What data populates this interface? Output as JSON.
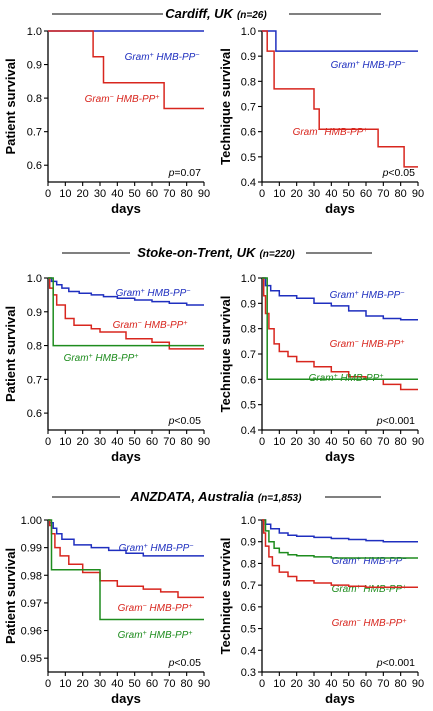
{
  "sections": [
    {
      "title": "Cardiff, UK",
      "n": "(n=26)"
    },
    {
      "title": "Stoke-on-Trent, UK",
      "n": "(n=220)"
    },
    {
      "title": "ANZDATA, Australia",
      "n": "(n=1,853)"
    }
  ],
  "colors": {
    "blue": "#1f2fbf",
    "red": "#d8261e",
    "green": "#1e8c1e"
  },
  "chart_data": [
    {
      "type": "line",
      "step": true,
      "title": "",
      "xlabel": "days",
      "ylabel": "Patient survival",
      "xlim": [
        0,
        90
      ],
      "ylim": [
        0.55,
        1.0
      ],
      "xticks": [
        "0",
        "10",
        "20",
        "30",
        "40",
        "50",
        "60",
        "70",
        "80",
        "90"
      ],
      "yticks": [
        "0.6",
        "0.7",
        "0.8",
        "0.9",
        "1.0"
      ],
      "ytick_values": [
        0.6,
        0.7,
        0.8,
        0.9,
        1.0
      ],
      "pvalue": "=0.07",
      "series": [
        {
          "name": "Gram+ HMB-PP−",
          "color": "blue",
          "x": [
            0,
            90
          ],
          "y": [
            1.0,
            1.0
          ]
        },
        {
          "name": "Gram− HMB-PP+",
          "color": "red",
          "x": [
            0,
            26,
            32,
            67,
            90
          ],
          "y": [
            1.0,
            0.923,
            0.846,
            0.769,
            0.769
          ]
        }
      ]
    },
    {
      "type": "line",
      "step": true,
      "title": "",
      "xlabel": "days",
      "ylabel": "Technique survival",
      "xlim": [
        0,
        90
      ],
      "ylim": [
        0.4,
        1.0
      ],
      "xticks": [
        "0",
        "10",
        "20",
        "30",
        "40",
        "50",
        "60",
        "70",
        "80",
        "90"
      ],
      "yticks": [
        "0.4",
        "0.5",
        "0.6",
        "0.7",
        "0.8",
        "0.9",
        "1.0"
      ],
      "ytick_values": [
        0.4,
        0.5,
        0.6,
        0.7,
        0.8,
        0.9,
        1.0
      ],
      "pvalue": "<0.05",
      "series": [
        {
          "name": "Gram+ HMB-PP−",
          "color": "blue",
          "x": [
            0,
            8,
            90
          ],
          "y": [
            1.0,
            0.92,
            0.92
          ]
        },
        {
          "name": "Gram− HMB-PP+",
          "color": "red",
          "x": [
            0,
            3,
            7,
            30,
            33,
            67,
            82,
            90
          ],
          "y": [
            1.0,
            0.92,
            0.77,
            0.69,
            0.61,
            0.54,
            0.46,
            0.46
          ]
        }
      ]
    },
    {
      "type": "line",
      "step": true,
      "title": "",
      "xlabel": "days",
      "ylabel": "Patient survival",
      "xlim": [
        0,
        90
      ],
      "ylim": [
        0.55,
        1.0
      ],
      "xticks": [
        "0",
        "10",
        "20",
        "30",
        "40",
        "50",
        "60",
        "70",
        "80",
        "90"
      ],
      "yticks": [
        "0.6",
        "0.7",
        "0.8",
        "0.9",
        "1.0"
      ],
      "ytick_values": [
        0.6,
        0.7,
        0.8,
        0.9,
        1.0
      ],
      "pvalue": "<0.05",
      "series": [
        {
          "name": "Gram+ HMB-PP−",
          "color": "blue",
          "x": [
            0,
            2,
            5,
            8,
            12,
            18,
            25,
            32,
            40,
            50,
            60,
            70,
            80,
            90
          ],
          "y": [
            1.0,
            0.99,
            0.98,
            0.97,
            0.96,
            0.955,
            0.95,
            0.945,
            0.94,
            0.935,
            0.93,
            0.925,
            0.92,
            0.92
          ]
        },
        {
          "name": "Gram− HMB-PP+",
          "color": "red",
          "x": [
            0,
            1,
            3,
            5,
            10,
            15,
            25,
            30,
            45,
            60,
            70,
            90
          ],
          "y": [
            1.0,
            0.97,
            0.95,
            0.92,
            0.88,
            0.86,
            0.85,
            0.84,
            0.82,
            0.81,
            0.79,
            0.79
          ]
        },
        {
          "name": "Gram+ HMB-PP+",
          "color": "green",
          "x": [
            0,
            3,
            90
          ],
          "y": [
            1.0,
            0.8,
            0.8
          ]
        }
      ]
    },
    {
      "type": "line",
      "step": true,
      "title": "",
      "xlabel": "days",
      "ylabel": "Technique survival",
      "xlim": [
        0,
        90
      ],
      "ylim": [
        0.4,
        1.0
      ],
      "xticks": [
        "0",
        "10",
        "20",
        "30",
        "40",
        "50",
        "60",
        "70",
        "80",
        "90"
      ],
      "yticks": [
        "0.4",
        "0.5",
        "0.6",
        "0.7",
        "0.8",
        "0.9",
        "1.0"
      ],
      "ytick_values": [
        0.4,
        0.5,
        0.6,
        0.7,
        0.8,
        0.9,
        1.0
      ],
      "pvalue": "<0.001",
      "series": [
        {
          "name": "Gram+ HMB-PP−",
          "color": "blue",
          "x": [
            0,
            2,
            5,
            10,
            20,
            30,
            40,
            50,
            60,
            70,
            80,
            90
          ],
          "y": [
            1.0,
            0.97,
            0.95,
            0.93,
            0.92,
            0.9,
            0.89,
            0.87,
            0.85,
            0.84,
            0.835,
            0.835
          ]
        },
        {
          "name": "Gram− HMB-PP+",
          "color": "red",
          "x": [
            0,
            1,
            2,
            4,
            7,
            10,
            15,
            20,
            30,
            40,
            50,
            60,
            70,
            80,
            90
          ],
          "y": [
            1.0,
            0.93,
            0.86,
            0.8,
            0.74,
            0.71,
            0.69,
            0.67,
            0.65,
            0.63,
            0.61,
            0.6,
            0.58,
            0.56,
            0.56
          ]
        },
        {
          "name": "Gram+ HMB-PP+",
          "color": "green",
          "x": [
            0,
            3,
            90
          ],
          "y": [
            1.0,
            0.6,
            0.6
          ]
        }
      ]
    },
    {
      "type": "line",
      "step": true,
      "title": "",
      "xlabel": "days",
      "ylabel": "Patient survival",
      "xlim": [
        0,
        90
      ],
      "ylim": [
        0.945,
        1.0
      ],
      "xticks": [
        "0",
        "10",
        "20",
        "30",
        "40",
        "50",
        "60",
        "70",
        "80",
        "90"
      ],
      "yticks": [
        "0.95",
        "0.96",
        "0.97",
        "0.98",
        "0.99",
        "1.00"
      ],
      "ytick_values": [
        0.95,
        0.96,
        0.97,
        0.98,
        0.99,
        1.0
      ],
      "pvalue": "<0.05",
      "series": [
        {
          "name": "Gram+ HMB-PP−",
          "color": "blue",
          "x": [
            0,
            1,
            3,
            5,
            8,
            15,
            25,
            35,
            45,
            55,
            65,
            90
          ],
          "y": [
            1.0,
            0.999,
            0.997,
            0.995,
            0.993,
            0.991,
            0.99,
            0.989,
            0.988,
            0.987,
            0.987,
            0.987
          ]
        },
        {
          "name": "Gram− HMB-PP+",
          "color": "red",
          "x": [
            0,
            1,
            2,
            4,
            7,
            12,
            20,
            30,
            40,
            55,
            65,
            75,
            90
          ],
          "y": [
            1.0,
            0.998,
            0.995,
            0.99,
            0.987,
            0.984,
            0.981,
            0.978,
            0.976,
            0.975,
            0.974,
            0.972,
            0.972
          ]
        },
        {
          "name": "Gram+ HMB-PP+",
          "color": "green",
          "x": [
            0,
            2,
            30,
            90
          ],
          "y": [
            1.0,
            0.982,
            0.964,
            0.964
          ]
        }
      ]
    },
    {
      "type": "line",
      "step": true,
      "title": "",
      "xlabel": "days",
      "ylabel": "Technique survival",
      "xlim": [
        0,
        90
      ],
      "ylim": [
        0.3,
        1.0
      ],
      "xticks": [
        "0",
        "10",
        "20",
        "30",
        "40",
        "50",
        "60",
        "70",
        "80",
        "90"
      ],
      "yticks": [
        "0.3",
        "0.4",
        "0.5",
        "0.6",
        "0.7",
        "0.8",
        "0.9",
        "1.0"
      ],
      "ytick_values": [
        0.3,
        0.4,
        0.5,
        0.6,
        0.7,
        0.8,
        0.9,
        1.0
      ],
      "pvalue": "<0.001",
      "series": [
        {
          "name": "Gram+ HMB-PP−",
          "color": "blue",
          "x": [
            0,
            2,
            5,
            10,
            15,
            20,
            30,
            40,
            50,
            60,
            70,
            90
          ],
          "y": [
            1.0,
            0.98,
            0.96,
            0.94,
            0.93,
            0.925,
            0.92,
            0.915,
            0.91,
            0.905,
            0.9,
            0.9
          ]
        },
        {
          "name": "Gram+ HMB-PP+",
          "color": "green",
          "x": [
            0,
            2,
            4,
            7,
            10,
            15,
            20,
            30,
            40,
            90
          ],
          "y": [
            1.0,
            0.95,
            0.9,
            0.87,
            0.85,
            0.84,
            0.835,
            0.83,
            0.825,
            0.825
          ]
        },
        {
          "name": "Gram− HMB-PP+",
          "color": "red",
          "x": [
            0,
            1,
            2,
            4,
            6,
            10,
            15,
            20,
            30,
            40,
            50,
            60,
            90
          ],
          "y": [
            1.0,
            0.94,
            0.88,
            0.83,
            0.79,
            0.76,
            0.74,
            0.72,
            0.71,
            0.7,
            0.695,
            0.69,
            0.69
          ]
        }
      ]
    }
  ]
}
